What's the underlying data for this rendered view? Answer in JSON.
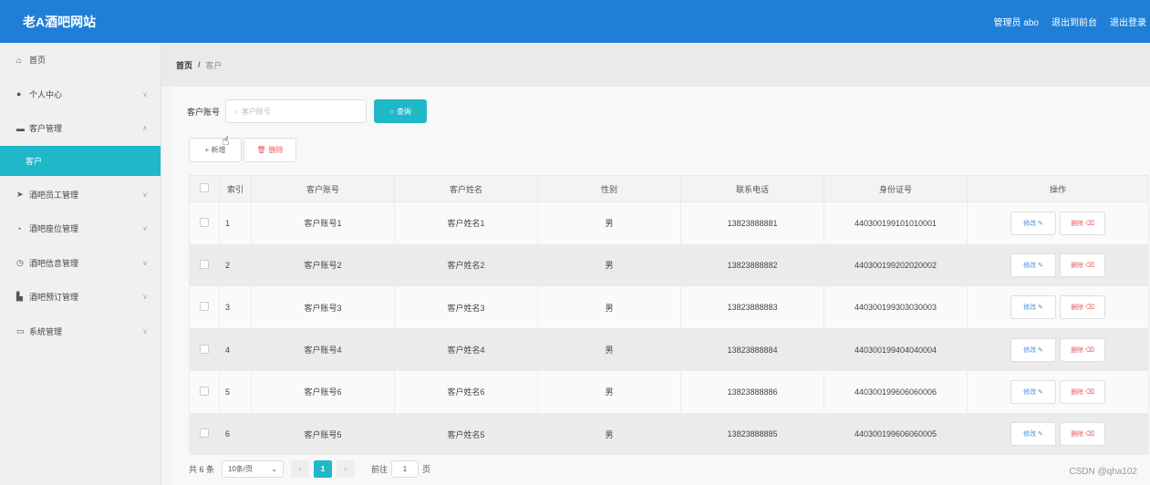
{
  "header": {
    "brand": "老A酒吧网站",
    "admin": "管理员 abo",
    "exit_front": "退出到前台",
    "logout": "退出登录"
  },
  "sidebar": {
    "items": [
      {
        "label": "首页",
        "icon": "home-icon",
        "arrow": ""
      },
      {
        "label": "个人中心",
        "icon": "user-icon",
        "arrow": "∨"
      },
      {
        "label": "客户管理",
        "icon": "monitor-icon",
        "arrow": "∧"
      },
      {
        "label": "酒吧员工管理",
        "icon": "send-icon",
        "arrow": "∨"
      },
      {
        "label": "酒吧座位管理",
        "icon": "gauge-icon",
        "arrow": "∨"
      },
      {
        "label": "酒吧信息管理",
        "icon": "clock-icon",
        "arrow": "∨"
      },
      {
        "label": "酒吧预订管理",
        "icon": "bag-icon",
        "arrow": "∨"
      },
      {
        "label": "系统管理",
        "icon": "chat-icon",
        "arrow": "∨"
      }
    ],
    "active_sub": "客户"
  },
  "breadcrumb": {
    "home": "首页",
    "sep": "/",
    "current": "客户"
  },
  "search": {
    "label": "客户账号",
    "placeholder": "客户账号",
    "button": "查询"
  },
  "actions": {
    "add": "+ 新增",
    "delete": "删除"
  },
  "table": {
    "headers": [
      "",
      "索引",
      "客户账号",
      "客户姓名",
      "性别",
      "联系电话",
      "身份证号",
      "操作"
    ],
    "rows": [
      {
        "idx": "1",
        "account": "客户账号1",
        "name": "客户姓名1",
        "gender": "男",
        "phone": "13823888881",
        "id_card": "440300199101010001"
      },
      {
        "idx": "2",
        "account": "客户账号2",
        "name": "客户姓名2",
        "gender": "男",
        "phone": "13823888882",
        "id_card": "440300199202020002"
      },
      {
        "idx": "3",
        "account": "客户账号3",
        "name": "客户姓名3",
        "gender": "男",
        "phone": "13823888883",
        "id_card": "440300199303030003"
      },
      {
        "idx": "4",
        "account": "客户账号4",
        "name": "客户姓名4",
        "gender": "男",
        "phone": "13823888884",
        "id_card": "440300199404040004"
      },
      {
        "idx": "5",
        "account": "客户账号6",
        "name": "客户姓名6",
        "gender": "男",
        "phone": "13823888886",
        "id_card": "440300199606060006"
      },
      {
        "idx": "6",
        "account": "客户账号5",
        "name": "客户姓名5",
        "gender": "男",
        "phone": "13823888885",
        "id_card": "440300199606060005"
      }
    ],
    "edit_label": "修改 ✎",
    "remove_label": "删除 ⌫"
  },
  "pager": {
    "total": "共 6 条",
    "page_size": "10条/页",
    "current_page": "1",
    "goto_prefix": "前往",
    "goto_value": "1",
    "goto_suffix": "页"
  },
  "watermark": "CSDN @qha102",
  "colors": {
    "header": "#1f7fd6",
    "accent": "#1fb8c9",
    "danger": "#e35b5b"
  }
}
